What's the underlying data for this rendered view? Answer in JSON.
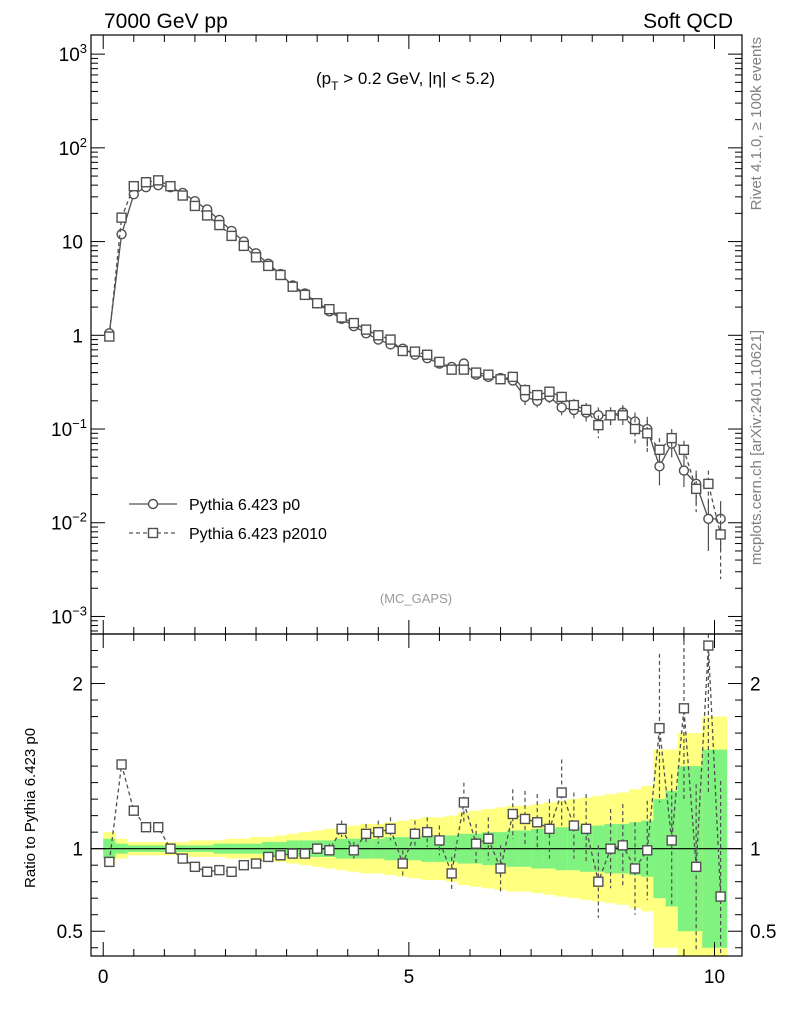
{
  "header": {
    "left": "7000 GeV pp",
    "right": "Soft QCD"
  },
  "side": {
    "rivet": "Rivet 4.1.0, ≥ 100k events",
    "mcplots": "mcplots.cern.ch [arXiv:2401.10621]"
  },
  "chart_data": {
    "type": "line",
    "annotation_prefix": "(p",
    "annotation_sub": "T",
    "annotation_rest": " > 0.2 GeV, |η| < 5.2)",
    "watermark": "(MC_GAPS)",
    "xlim": [
      -0.2,
      10.45
    ],
    "ylim": [
      0.00065,
      1600
    ],
    "yscale": "log",
    "x_ticks": [
      0,
      5,
      10
    ],
    "y_ticks": [
      {
        "v": 1000,
        "base": "10",
        "exp": "3"
      },
      {
        "v": 100,
        "base": "10",
        "exp": "2"
      },
      {
        "v": 10,
        "base": "10",
        "exp": ""
      },
      {
        "v": 1,
        "base": "1",
        "exp": ""
      },
      {
        "v": 0.1,
        "base": "10",
        "exp": "−1"
      },
      {
        "v": 0.01,
        "base": "10",
        "exp": "−2"
      },
      {
        "v": 0.001,
        "base": "10",
        "exp": "−3"
      }
    ],
    "x": [
      0.1,
      0.3,
      0.5,
      0.7,
      0.9,
      1.1,
      1.3,
      1.5,
      1.7,
      1.9,
      2.1,
      2.3,
      2.5,
      2.7,
      2.9,
      3.1,
      3.3,
      3.5,
      3.7,
      3.9,
      4.1,
      4.3,
      4.5,
      4.7,
      4.9,
      5.1,
      5.3,
      5.5,
      5.7,
      5.9,
      6.1,
      6.3,
      6.5,
      6.7,
      6.9,
      7.1,
      7.3,
      7.5,
      7.7,
      7.9,
      8.1,
      8.3,
      8.5,
      8.7,
      8.9,
      9.1,
      9.3,
      9.5,
      9.7,
      9.9,
      10.1
    ],
    "series": [
      {
        "name": "Pythia 6.423 p0",
        "marker": "circle",
        "dash": "solid",
        "values": [
          1.05,
          12,
          32,
          38,
          40,
          38,
          33,
          27,
          22,
          17,
          13,
          10,
          7.5,
          5.8,
          4.5,
          3.4,
          2.8,
          2.2,
          1.8,
          1.5,
          1.25,
          1.05,
          0.9,
          0.8,
          0.72,
          0.62,
          0.57,
          0.5,
          0.46,
          0.5,
          0.38,
          0.36,
          0.35,
          0.33,
          0.22,
          0.2,
          0.22,
          0.17,
          0.16,
          0.15,
          0.14,
          0.14,
          0.15,
          0.12,
          0.1,
          0.04,
          0.07,
          0.036,
          0.026,
          0.011,
          0.011
        ],
        "err": [
          0,
          0,
          0,
          0,
          0,
          0,
          0,
          0,
          0,
          0,
          0,
          0,
          0,
          0,
          0,
          0,
          0,
          0,
          0,
          0,
          0,
          0,
          0,
          0,
          0,
          0,
          0,
          0,
          0,
          0.03,
          0.03,
          0.03,
          0.03,
          0.03,
          0.04,
          0.03,
          0.03,
          0.03,
          0.03,
          0.03,
          0.03,
          0.03,
          0.03,
          0.03,
          0.035,
          0.015,
          0.02,
          0.012,
          0.01,
          0.006,
          0.006
        ]
      },
      {
        "name": "Pythia 6.423 p2010",
        "marker": "square",
        "dash": "dashed",
        "values": [
          0.97,
          18,
          39,
          43,
          45,
          39,
          31,
          24,
          19,
          15,
          11.5,
          9,
          6.8,
          5.5,
          4.4,
          3.3,
          2.7,
          2.2,
          1.9,
          1.55,
          1.35,
          1.15,
          1.0,
          0.9,
          0.68,
          0.67,
          0.62,
          0.52,
          0.43,
          0.43,
          0.4,
          0.38,
          0.34,
          0.36,
          0.26,
          0.23,
          0.25,
          0.22,
          0.18,
          0.16,
          0.11,
          0.14,
          0.14,
          0.1,
          0.09,
          0.06,
          0.08,
          0.06,
          0.023,
          0.026,
          0.0075
        ],
        "err": [
          0,
          0,
          0,
          0,
          0,
          0,
          0,
          0,
          0,
          0,
          0,
          0,
          0,
          0,
          0,
          0,
          0,
          0,
          0,
          0,
          0,
          0,
          0,
          0,
          0,
          0,
          0,
          0,
          0,
          0.03,
          0.03,
          0.03,
          0.03,
          0.03,
          0.04,
          0.03,
          0.03,
          0.03,
          0.03,
          0.03,
          0.03,
          0.03,
          0.03,
          0.03,
          0.035,
          0.02,
          0.02,
          0.015,
          0.01,
          0.01,
          0.005
        ]
      }
    ],
    "ratio": {
      "ylabel": "Ratio to Pythia 6.423 p0",
      "ylim": [
        0.35,
        2.3
      ],
      "y_ticks": [
        {
          "v": 0.5,
          "label": "0.5"
        },
        {
          "v": 1,
          "label": "1"
        },
        {
          "v": 2,
          "label": "2"
        }
      ],
      "values": [
        0.92,
        1.51,
        1.23,
        1.13,
        1.13,
        1.0,
        0.94,
        0.89,
        0.86,
        0.87,
        0.86,
        0.9,
        0.91,
        0.95,
        0.96,
        0.97,
        0.97,
        1.0,
        0.99,
        1.12,
        0.99,
        1.09,
        1.1,
        1.12,
        0.91,
        1.09,
        1.1,
        1.05,
        0.85,
        1.28,
        1.03,
        1.06,
        0.88,
        1.21,
        1.18,
        1.16,
        1.12,
        1.34,
        1.14,
        1.12,
        0.8,
        1.0,
        1.02,
        0.88,
        0.99,
        1.73,
        1.05,
        1.85,
        0.89,
        2.23,
        0.71
      ],
      "err": [
        0.03,
        0.02,
        0.02,
        0.01,
        0.01,
        0.01,
        0.01,
        0.01,
        0.01,
        0.01,
        0.01,
        0.01,
        0.01,
        0.01,
        0.02,
        0.02,
        0.02,
        0.03,
        0.04,
        0.05,
        0.05,
        0.06,
        0.07,
        0.07,
        0.08,
        0.08,
        0.09,
        0.09,
        0.1,
        0.12,
        0.12,
        0.13,
        0.14,
        0.15,
        0.17,
        0.17,
        0.18,
        0.2,
        0.2,
        0.21,
        0.22,
        0.24,
        0.25,
        0.28,
        0.3,
        0.45,
        0.4,
        0.55,
        0.5,
        0.9,
        0.7
      ],
      "band_green": [
        0.06,
        0.03,
        0.02,
        0.02,
        0.02,
        0.02,
        0.02,
        0.02,
        0.02,
        0.03,
        0.03,
        0.03,
        0.03,
        0.04,
        0.04,
        0.05,
        0.05,
        0.05,
        0.05,
        0.06,
        0.06,
        0.06,
        0.06,
        0.07,
        0.07,
        0.07,
        0.08,
        0.08,
        0.08,
        0.09,
        0.09,
        0.1,
        0.1,
        0.11,
        0.11,
        0.12,
        0.12,
        0.13,
        0.13,
        0.14,
        0.14,
        0.15,
        0.15,
        0.16,
        0.17,
        0.3,
        0.35,
        0.5,
        0.5,
        0.6,
        0.6
      ],
      "band_yellow": [
        0.1,
        0.06,
        0.04,
        0.04,
        0.04,
        0.04,
        0.04,
        0.05,
        0.05,
        0.05,
        0.06,
        0.06,
        0.07,
        0.07,
        0.08,
        0.09,
        0.1,
        0.11,
        0.12,
        0.13,
        0.14,
        0.15,
        0.15,
        0.16,
        0.17,
        0.18,
        0.19,
        0.19,
        0.2,
        0.22,
        0.23,
        0.24,
        0.25,
        0.26,
        0.26,
        0.27,
        0.28,
        0.29,
        0.3,
        0.31,
        0.32,
        0.33,
        0.34,
        0.36,
        0.38,
        0.6,
        0.6,
        0.7,
        0.7,
        0.8,
        0.8
      ]
    },
    "colors": {
      "series": "#505050",
      "band_green": "#80f280",
      "band_yellow": "#ffff80"
    }
  }
}
